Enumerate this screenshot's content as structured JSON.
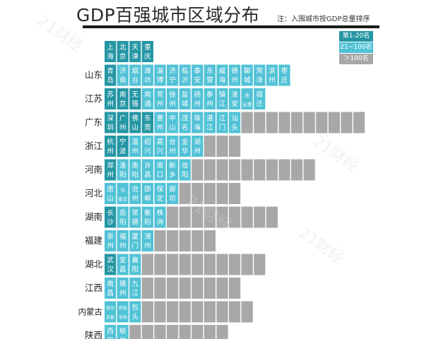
{
  "header": {
    "title": "GDP百强城市区域分布",
    "note": "注：入围城市按GDP总量排序"
  },
  "watermark": "21财经",
  "colors": {
    "top20": "#2596a4",
    "top21_100": "#51c2d6",
    "over100": "#a8a8a8",
    "text_on_cell": "#ffffff"
  },
  "legend": [
    {
      "label": "第1-20名",
      "tier": 1
    },
    {
      "label": "21~100名",
      "tier": 2
    },
    {
      "label": "＞100名",
      "tier": 3
    }
  ],
  "chart_data": {
    "type": "table",
    "title": "GDP百强城市区域分布",
    "note": "注：入围城市按GDP总量排序",
    "rows": [
      {
        "province": "",
        "cities": [
          [
            "上海",
            1
          ],
          [
            "北京",
            1
          ],
          [
            "天津",
            1
          ],
          [
            "重庆",
            1
          ]
        ],
        "others": 0
      },
      {
        "province": "山东",
        "cities": [
          [
            "青岛",
            1
          ],
          [
            "济南",
            2
          ],
          [
            "烟台",
            2
          ],
          [
            "潍坊",
            2
          ],
          [
            "淄博",
            2
          ],
          [
            "济宁",
            2
          ],
          [
            "临沂",
            2
          ],
          [
            "泰安",
            2
          ],
          [
            "东营",
            2
          ],
          [
            "威海",
            2
          ],
          [
            "德州",
            2
          ],
          [
            "聊城",
            2
          ],
          [
            "菏泽",
            2
          ],
          [
            "滨州",
            2
          ],
          [
            "枣庄",
            2
          ]
        ],
        "others": 0
      },
      {
        "province": "江苏",
        "cities": [
          [
            "苏州",
            1
          ],
          [
            "南京",
            1
          ],
          [
            "无锡",
            1
          ],
          [
            "南通",
            2
          ],
          [
            "常州",
            2
          ],
          [
            "徐州",
            2
          ],
          [
            "盐城",
            2
          ],
          [
            "扬州",
            2
          ],
          [
            "泰州",
            2
          ],
          [
            "镇江",
            2
          ],
          [
            "淮安",
            2
          ],
          [
            "连云港",
            2
          ],
          [
            "宿迁",
            2
          ]
        ],
        "others": 0
      },
      {
        "province": "广东",
        "cities": [
          [
            "深圳",
            1
          ],
          [
            "广州",
            1
          ],
          [
            "佛山",
            1
          ],
          [
            "东莞",
            1
          ],
          [
            "惠州",
            2
          ],
          [
            "中山",
            2
          ],
          [
            "茂名",
            2
          ],
          [
            "珠海",
            2
          ],
          [
            "湛江",
            2
          ],
          [
            "江门",
            2
          ],
          [
            "汕头",
            2
          ]
        ],
        "others": 10
      },
      {
        "province": "浙江",
        "cities": [
          [
            "杭州",
            1
          ],
          [
            "宁波",
            1
          ],
          [
            "温州",
            2
          ],
          [
            "绍兴",
            2
          ],
          [
            "嘉兴",
            2
          ],
          [
            "台州",
            2
          ],
          [
            "金华",
            2
          ],
          [
            "湖州",
            2
          ]
        ],
        "others": 3
      },
      {
        "province": "河南",
        "cities": [
          [
            "郑州",
            1
          ],
          [
            "洛阳",
            2
          ],
          [
            "南阳",
            2
          ],
          [
            "许昌",
            2
          ],
          [
            "周口",
            2
          ],
          [
            "新乡",
            2
          ],
          [
            "信阳",
            2
          ]
        ],
        "others": 10
      },
      {
        "province": "河北",
        "cities": [
          [
            "唐山",
            2
          ],
          [
            "石家庄",
            2
          ],
          [
            "沧州",
            2
          ],
          [
            "邯郸",
            2
          ],
          [
            "保定",
            2
          ],
          [
            "廊坊",
            2
          ]
        ],
        "others": 5
      },
      {
        "province": "湖南",
        "cities": [
          [
            "长沙",
            1
          ],
          [
            "岳阳",
            2
          ],
          [
            "常德",
            2
          ],
          [
            "衡阳",
            2
          ],
          [
            "株洲",
            2
          ]
        ],
        "others": 9
      },
      {
        "province": "福建",
        "cities": [
          [
            "泉州",
            2
          ],
          [
            "福州",
            2
          ],
          [
            "厦门",
            2
          ],
          [
            "漳州",
            2
          ]
        ],
        "others": 5
      },
      {
        "province": "湖北",
        "cities": [
          [
            "武汉",
            1
          ],
          [
            "宜昌",
            2
          ],
          [
            "襄阳",
            2
          ]
        ],
        "others": 10
      },
      {
        "province": "江西",
        "cities": [
          [
            "南昌",
            2
          ],
          [
            "赣州",
            2
          ],
          [
            "九江",
            2
          ]
        ],
        "others": 8
      },
      {
        "province": "内蒙古",
        "cities": [
          [
            "鄂尔多斯",
            2
          ],
          [
            "呼和浩特",
            2
          ],
          [
            "包头",
            2
          ]
        ],
        "others": 9
      },
      {
        "province": "陕西",
        "cities": [
          [
            "西安",
            2
          ],
          [
            "榆林",
            2
          ]
        ],
        "others": 8
      }
    ]
  }
}
